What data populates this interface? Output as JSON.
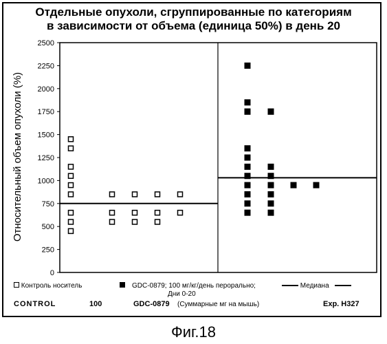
{
  "title_line1": "Отдельные опухоли, сгруппированные по категориям",
  "title_line2": "в зависимости от объема (единица 50%) в день 20",
  "figure_caption": "Фиг.18",
  "legend": {
    "control_label": "Контроль носитель",
    "gdc_label_line1": "GDC-0879; 100 мг/кг/день перорально;",
    "gdc_label_line2": "Дни 0-20",
    "median_label": "Медиана"
  },
  "bottom": {
    "control_label": "CONTROL",
    "control_value": "100",
    "gdc_label": "GDC-0879",
    "gdc_note": "(Суммарные мг на мышь)",
    "exp_label": "Exp. H327"
  },
  "chart_data": {
    "type": "scatter",
    "title": "Отдельные опухоли, сгруппированные по категориям в зависимости от объема (единица 50%) в день 20",
    "xlabel": "",
    "ylabel": "Относительный объем опухоли (%)",
    "ylim": [
      0,
      2500
    ],
    "yticks": [
      0,
      250,
      500,
      750,
      1000,
      1250,
      1500,
      1750,
      2000,
      2250,
      2500
    ],
    "grid": false,
    "series": [
      {
        "name": "Контроль носитель",
        "marker": "open-square",
        "columns": [
          [
            1450,
            1350,
            1150,
            1050,
            950,
            850,
            650,
            550,
            450
          ],
          [
            850,
            650,
            550
          ],
          [
            850,
            650,
            550
          ],
          [
            850,
            650,
            550
          ],
          [
            850,
            650
          ]
        ]
      },
      {
        "name": "GDC-0879; 100 мг/кг/день перорально; Дни 0-20",
        "marker": "filled-square",
        "columns": [
          [
            2250,
            1850,
            1750,
            1750,
            1350,
            1250,
            1150,
            1050,
            950,
            850,
            750,
            650
          ],
          [
            1750,
            1750,
            1150,
            1050,
            950,
            850,
            750,
            650
          ],
          [
            950
          ],
          [
            950
          ]
        ]
      }
    ],
    "medians": [
      {
        "group": "Контроль носитель",
        "value": 750
      },
      {
        "group": "GDC-0879",
        "value": 1030
      }
    ]
  }
}
